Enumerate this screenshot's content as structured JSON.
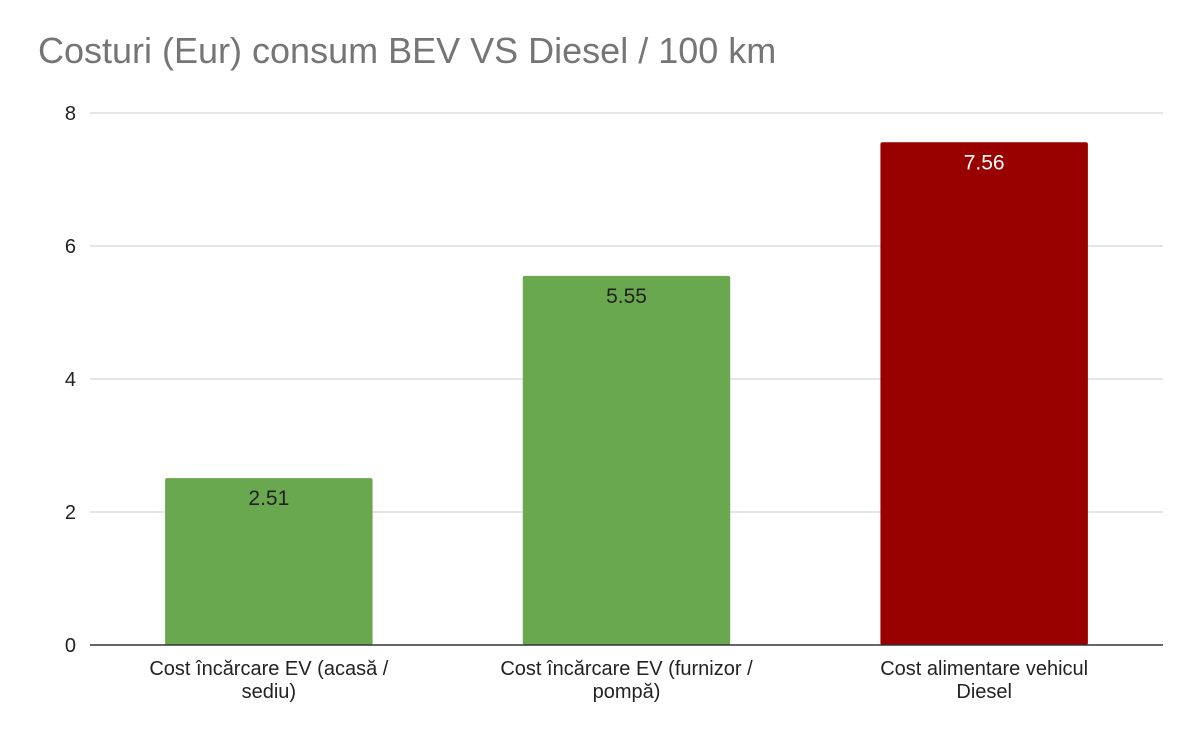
{
  "chart_data": {
    "type": "bar",
    "title": "Costuri (Eur) consum BEV VS Diesel / 100 km",
    "xlabel": "",
    "ylabel": "",
    "ylim": [
      0,
      8
    ],
    "yticks": [
      0,
      2,
      4,
      6,
      8
    ],
    "grid": true,
    "legend": "none",
    "categories": [
      [
        "Cost încărcare EV (acasă /",
        "sediu)"
      ],
      [
        "Cost încărcare EV (furnizor /",
        "pompă)"
      ],
      [
        "Cost alimentare vehicul",
        "Diesel"
      ]
    ],
    "values": [
      2.51,
      5.55,
      7.56
    ],
    "data_labels": [
      "2.51",
      "5.55",
      "7.56"
    ],
    "colors": [
      "#6aa84f",
      "#6aa84f",
      "#990000"
    ],
    "label_colors": [
      "#222222",
      "#222222",
      "#ffffff"
    ],
    "gridline_color": "#cccccc",
    "axis_color": "#333333"
  }
}
